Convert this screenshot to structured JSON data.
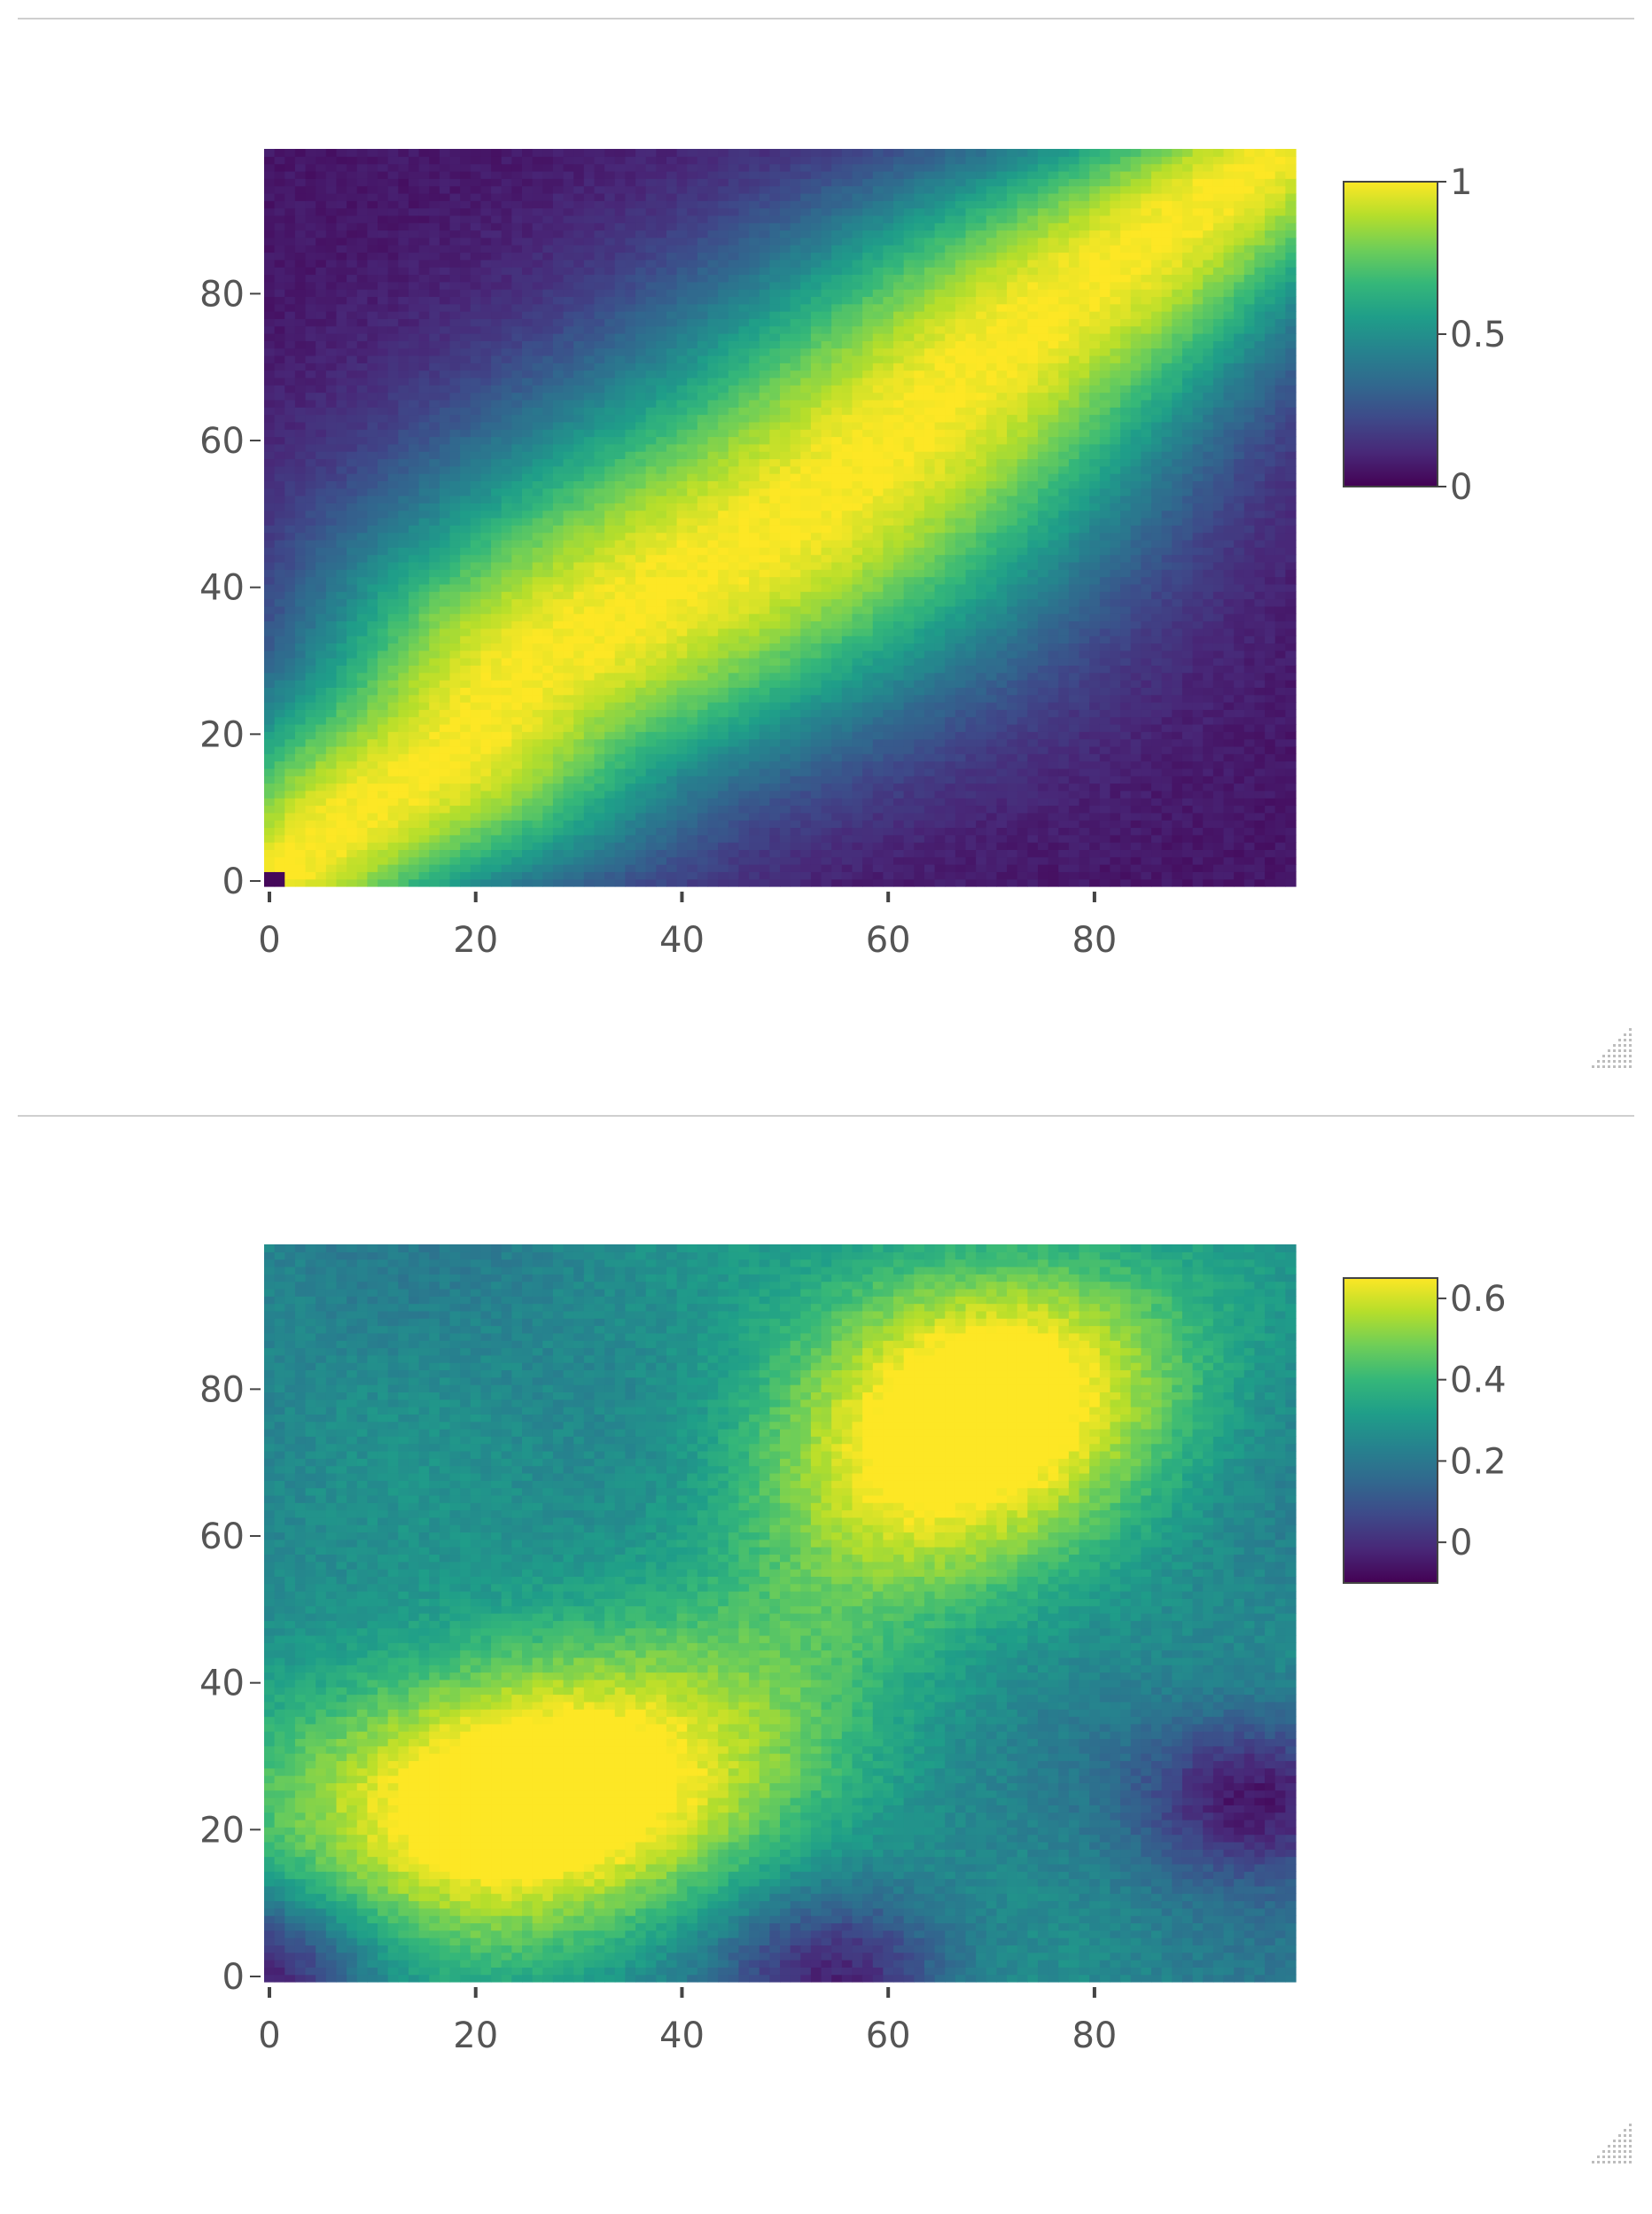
{
  "chart_data": [
    {
      "type": "heatmap",
      "title": "",
      "xlabel": "",
      "ylabel": "",
      "x": {
        "range": [
          0,
          99
        ],
        "tick_values": [
          0,
          20,
          40,
          60,
          80
        ],
        "tick_labels": [
          "0",
          "20",
          "40",
          "60",
          "80"
        ]
      },
      "y": {
        "range": [
          0,
          99
        ],
        "tick_values": [
          0,
          20,
          40,
          60,
          80
        ],
        "tick_labels": [
          "0",
          "20",
          "40",
          "60",
          "80"
        ]
      },
      "colorscale": "viridis",
      "colorscale_stops": [
        "#440154",
        "#482878",
        "#3e4989",
        "#31688e",
        "#26828e",
        "#1f9e89",
        "#35b779",
        "#6ece58",
        "#b5de2b",
        "#fde725"
      ],
      "colorbar": {
        "min": 0,
        "max": 1,
        "tick_values": [
          0,
          0.5,
          1
        ],
        "tick_labels": [
          "0",
          "0.5",
          "1"
        ]
      },
      "pattern": "Values peak (~1) along a band running from the bottom-left to the top-right, widest around x≈50, y≈50; values fall to ~0 in the top-left and bottom-right corners.",
      "ridge": [
        [
          0,
          0
        ],
        [
          7,
          8
        ],
        [
          18,
          18
        ],
        [
          25,
          29
        ],
        [
          40,
          41
        ],
        [
          50,
          49
        ],
        [
          55,
          54
        ],
        [
          62,
          62
        ],
        [
          72,
          74
        ],
        [
          80,
          82
        ],
        [
          97,
          98
        ]
      ]
    },
    {
      "type": "heatmap",
      "title": "",
      "xlabel": "",
      "ylabel": "",
      "x": {
        "range": [
          0,
          99
        ],
        "tick_values": [
          0,
          20,
          40,
          60,
          80
        ],
        "tick_labels": [
          "0",
          "20",
          "40",
          "60",
          "80"
        ]
      },
      "y": {
        "range": [
          0,
          99
        ],
        "tick_values": [
          0,
          20,
          40,
          60,
          80
        ],
        "tick_labels": [
          "0",
          "20",
          "40",
          "60",
          "80"
        ]
      },
      "colorscale": "viridis",
      "colorscale_stops": [
        "#440154",
        "#482878",
        "#3e4989",
        "#31688e",
        "#26828e",
        "#1f9e89",
        "#35b779",
        "#6ece58",
        "#b5de2b",
        "#fde725"
      ],
      "colorbar": {
        "min": -0.1,
        "max": 0.65,
        "tick_values": [
          0,
          0.2,
          0.4,
          0.6
        ],
        "tick_labels": [
          "0",
          "0.2",
          "0.4",
          "0.6"
        ]
      },
      "pattern": "Broad moderate values (~0.2–0.4) with a bright region (~0.6) near x≈72, y≈82 and a secondary band around y≈20–30, x≈10–35; lowest values (~-0.1) near x≈95, y≈25 and along the bottom edge x≈40–70.",
      "hotspots": [
        [
          72,
          82,
          0.62
        ],
        [
          60,
          66,
          0.5
        ],
        [
          12,
          22,
          0.45
        ],
        [
          25,
          28,
          0.45
        ],
        [
          32,
          23,
          0.45
        ],
        [
          50,
          38,
          0.35
        ]
      ],
      "coldspots": [
        [
          95,
          25,
          -0.1
        ],
        [
          55,
          1,
          -0.05
        ],
        [
          0,
          1,
          -0.1
        ]
      ]
    }
  ]
}
